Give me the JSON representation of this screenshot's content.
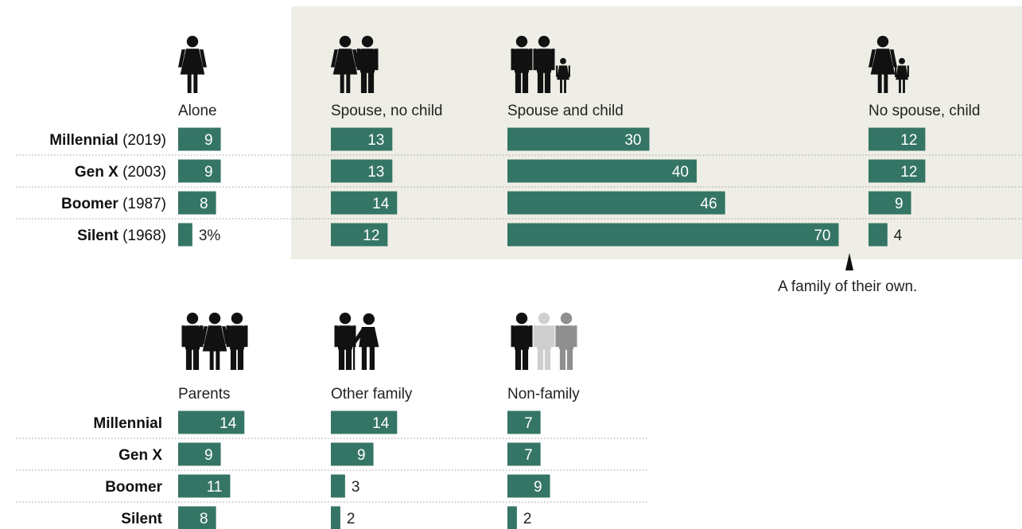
{
  "colors": {
    "bar": "#357565",
    "panel": "#efeee6",
    "grid": "#9a9a9a",
    "icon": "#111111",
    "icon_light": "#cfcfcf",
    "icon_mid": "#8f8f8f"
  },
  "chart_data": [
    {
      "type": "bar",
      "orientation": "horizontal",
      "rows": [
        {
          "name": "Millennial",
          "year": "(2019)"
        },
        {
          "name": "Gen X",
          "year": "(2003)"
        },
        {
          "name": "Boomer",
          "year": "(1987)"
        },
        {
          "name": "Silent",
          "year": "(1968)"
        }
      ],
      "series": [
        {
          "name": "Alone",
          "values": [
            9,
            9,
            8,
            3
          ],
          "labels": [
            "9",
            "9",
            "8",
            "3%"
          ],
          "icons": [
            "woman-icon"
          ]
        },
        {
          "name": "Spouse, no child",
          "values": [
            13,
            13,
            14,
            12
          ],
          "labels": [
            "13",
            "13",
            "14",
            "12"
          ],
          "icons": [
            "woman-icon",
            "man-icon"
          ]
        },
        {
          "name": "Spouse and child",
          "values": [
            30,
            40,
            46,
            70
          ],
          "labels": [
            "30",
            "40",
            "46",
            "70"
          ],
          "icons": [
            "man-icon",
            "man-icon",
            "child-icon"
          ]
        },
        {
          "name": "No spouse, child",
          "values": [
            12,
            12,
            9,
            4
          ],
          "labels": [
            "12",
            "12",
            "9",
            "4"
          ],
          "icons": [
            "woman-icon",
            "child-icon"
          ]
        }
      ],
      "annotation": "A family of their own.",
      "highlighted_panel": "Spouse, no child / Spouse and child / No spouse, child"
    },
    {
      "type": "bar",
      "orientation": "horizontal",
      "rows": [
        {
          "name": "Millennial",
          "year": ""
        },
        {
          "name": "Gen X",
          "year": ""
        },
        {
          "name": "Boomer",
          "year": ""
        },
        {
          "name": "Silent",
          "year": ""
        }
      ],
      "series": [
        {
          "name": "Parents",
          "values": [
            14,
            9,
            11,
            8
          ],
          "labels": [
            "14",
            "9",
            "11",
            "8"
          ],
          "icons": [
            "man-icon",
            "woman-icon",
            "man-icon"
          ]
        },
        {
          "name": "Other family",
          "values": [
            14,
            9,
            3,
            2
          ],
          "labels": [
            "14",
            "9",
            "3",
            "2"
          ],
          "icons": [
            "man-icon",
            "elderly-person-icon"
          ]
        },
        {
          "name": "Non-family",
          "values": [
            7,
            7,
            9,
            2
          ],
          "labels": [
            "7",
            "7",
            "9",
            "2"
          ],
          "icons": [
            "man-icon",
            "man-light-icon",
            "man-mid-icon"
          ]
        }
      ]
    }
  ]
}
